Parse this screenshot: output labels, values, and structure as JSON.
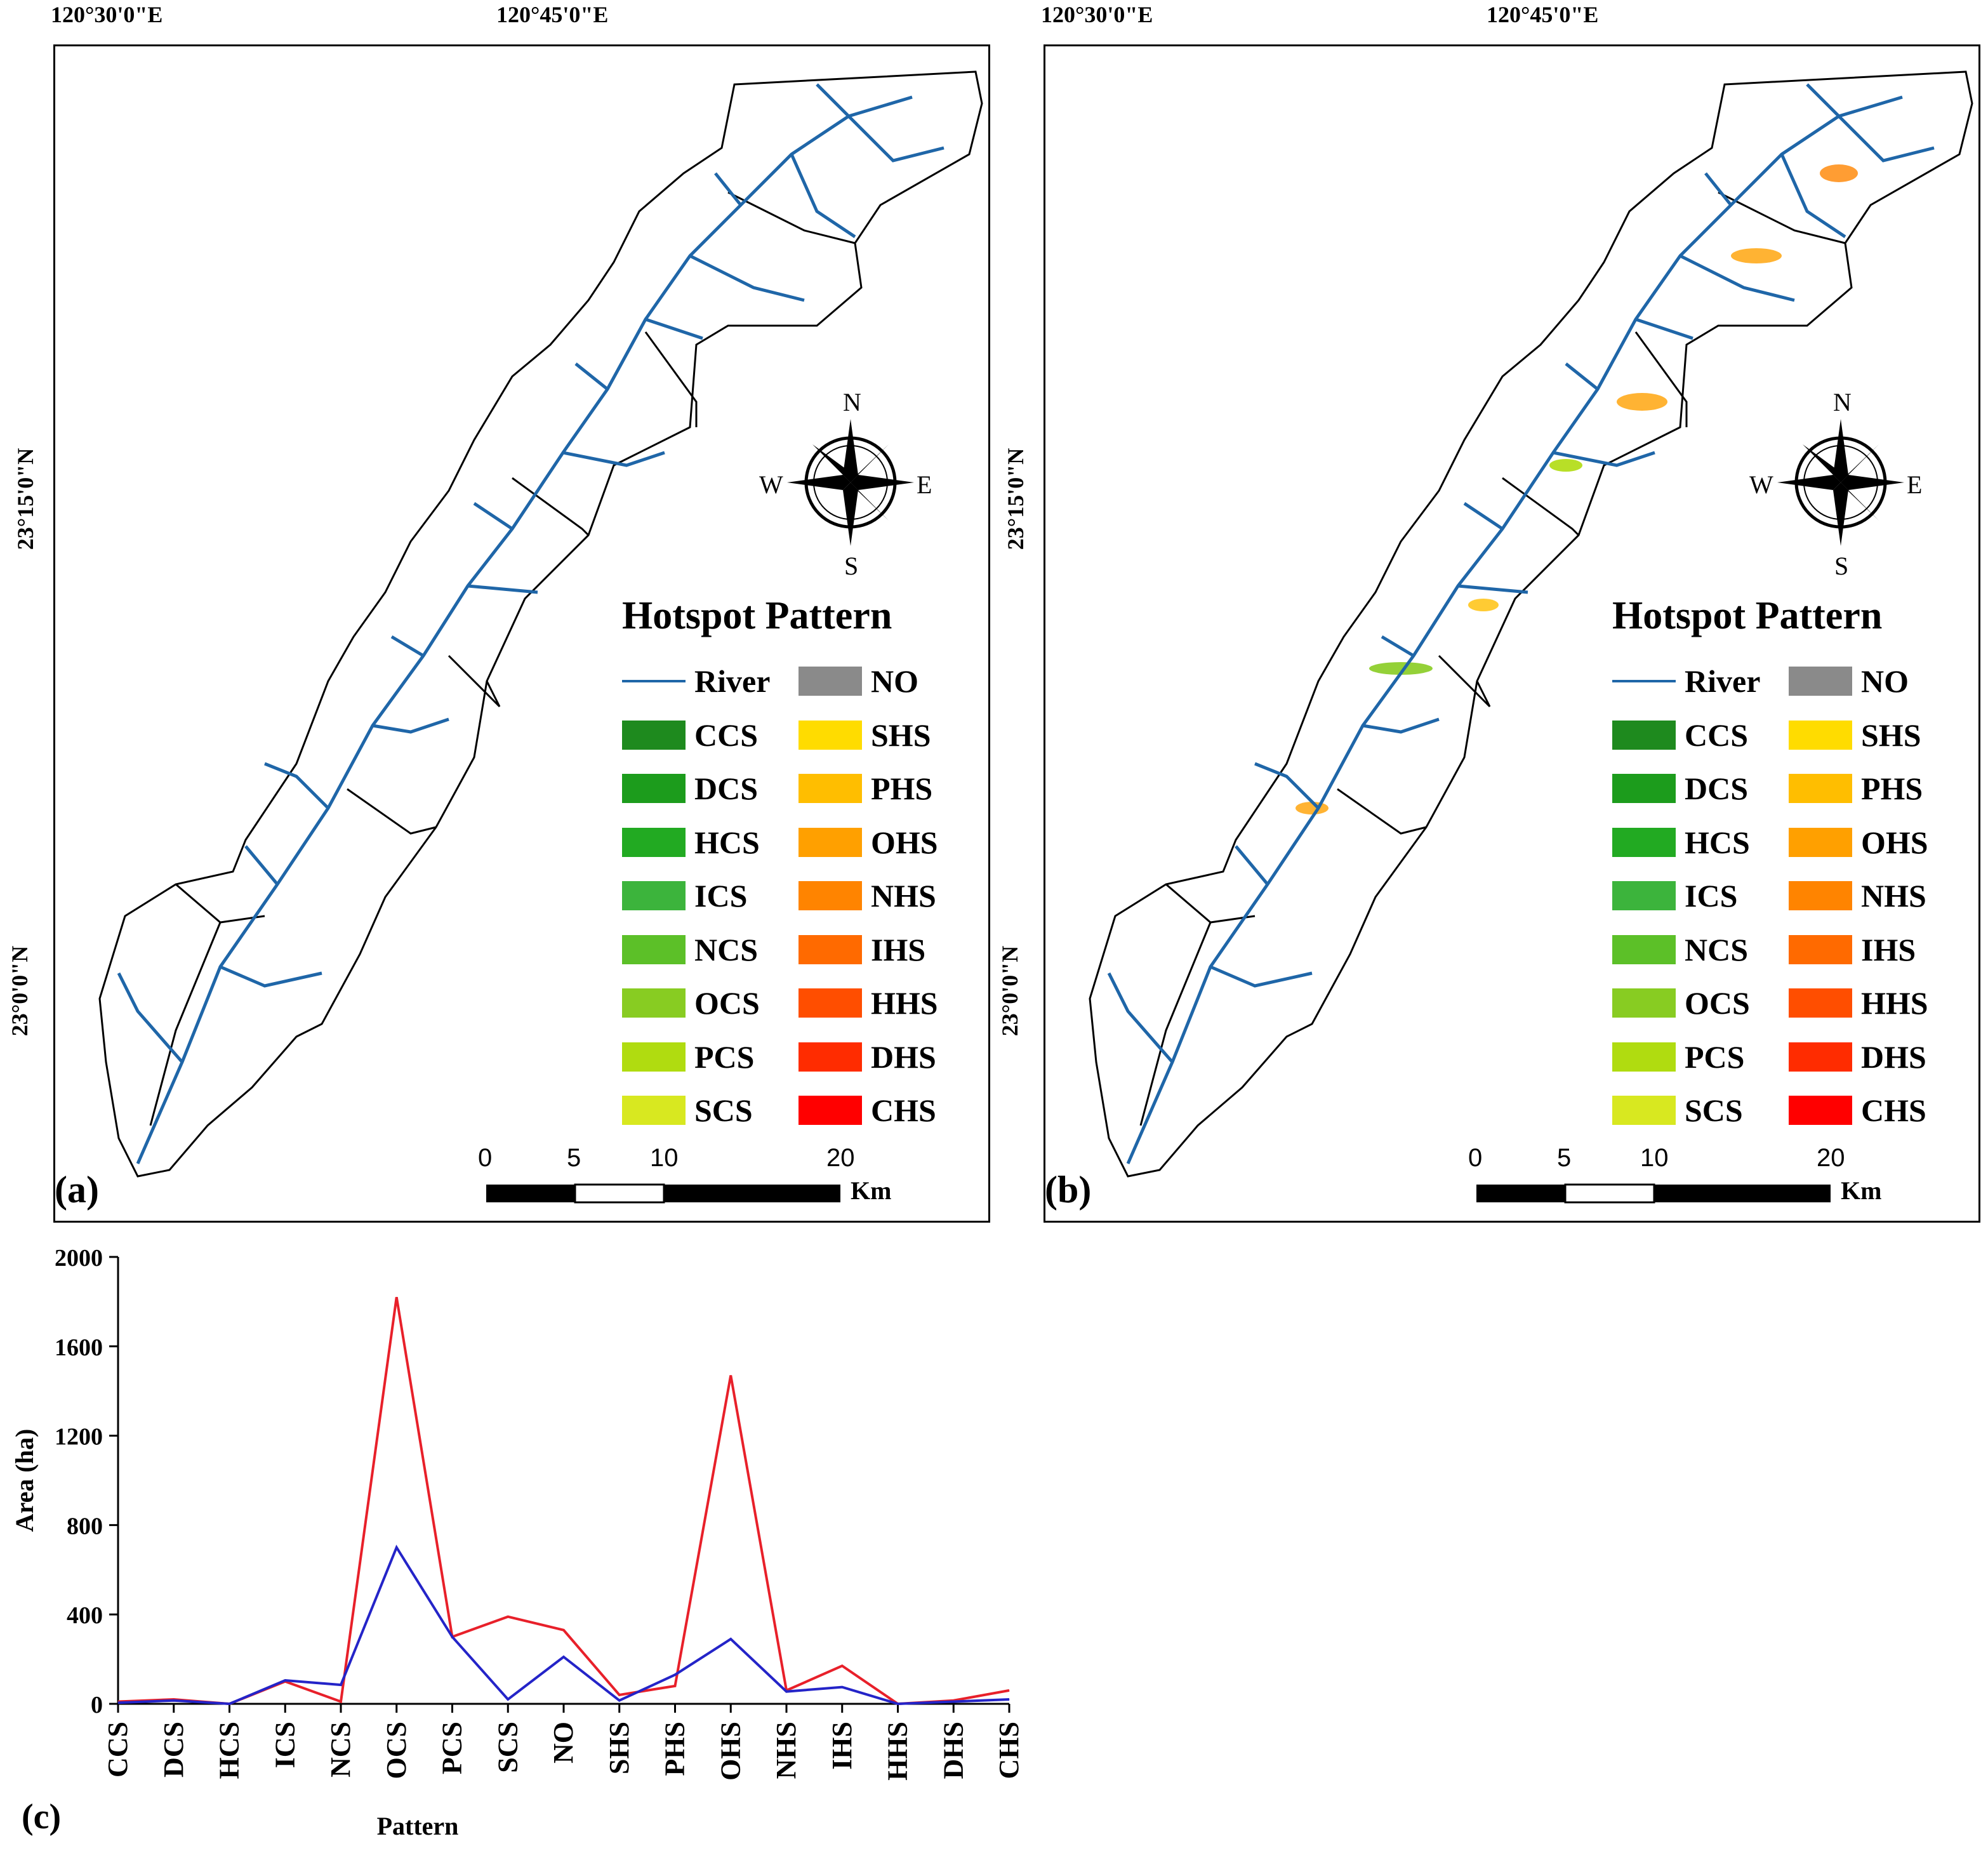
{
  "coords": {
    "lon1": "120°30'0\"E",
    "lon2": "120°45'0\"E",
    "lat1": "23°15'0\"N",
    "lat2": "23°0'0\"N"
  },
  "panels": [
    {
      "label": "(a)"
    },
    {
      "label": "(b)"
    }
  ],
  "compass": {
    "n": "N",
    "s": "S",
    "e": "E",
    "w": "W"
  },
  "legend": {
    "title": "Hotspot Pattern",
    "river": "River",
    "left": [
      {
        "label": "CCS",
        "color": "#1e8a1e"
      },
      {
        "label": "DCS",
        "color": "#1c9c1c"
      },
      {
        "label": "HCS",
        "color": "#22aa22"
      },
      {
        "label": "ICS",
        "color": "#3cb43c"
      },
      {
        "label": "NCS",
        "color": "#5cc028"
      },
      {
        "label": "OCS",
        "color": "#88cc22"
      },
      {
        "label": "PCS",
        "color": "#b0dc10"
      },
      {
        "label": "SCS",
        "color": "#d8e820"
      }
    ],
    "right": [
      {
        "label": "NO",
        "color": "#8a8a8a"
      },
      {
        "label": "SHS",
        "color": "#ffdc00"
      },
      {
        "label": "PHS",
        "color": "#ffbe00"
      },
      {
        "label": "OHS",
        "color": "#ffa000"
      },
      {
        "label": "NHS",
        "color": "#ff8400"
      },
      {
        "label": "IHS",
        "color": "#ff6a00"
      },
      {
        "label": "HHS",
        "color": "#ff4e00"
      },
      {
        "label": "DHS",
        "color": "#ff2c00"
      },
      {
        "label": "CHS",
        "color": "#ff0000"
      }
    ]
  },
  "scale_bar": {
    "ticks": [
      "0",
      "5",
      "10",
      "20"
    ],
    "unit": "Km"
  },
  "chart_panel_label": "(c)",
  "chart_data": {
    "type": "line",
    "categories": [
      "CCS",
      "DCS",
      "HCS",
      "ICS",
      "NCS",
      "OCS",
      "PCS",
      "SCS",
      "NO",
      "SHS",
      "PHS",
      "OHS",
      "NHS",
      "IHS",
      "HHS",
      "DHS",
      "CHS"
    ],
    "series": [
      {
        "name": "red",
        "color": "#e8202a",
        "values": [
          10,
          20,
          0,
          100,
          10,
          1820,
          300,
          390,
          330,
          40,
          80,
          1470,
          60,
          170,
          0,
          15,
          60
        ]
      },
      {
        "name": "blue",
        "color": "#2424c8",
        "values": [
          5,
          15,
          0,
          105,
          85,
          700,
          300,
          20,
          210,
          15,
          130,
          290,
          55,
          75,
          0,
          10,
          20
        ]
      }
    ],
    "yticks": [
      0,
      400,
      800,
      1200,
      1600,
      2000
    ],
    "ylim": [
      0,
      2000
    ],
    "xlabel": "Pattern",
    "ylabel": "Area (ha)"
  }
}
